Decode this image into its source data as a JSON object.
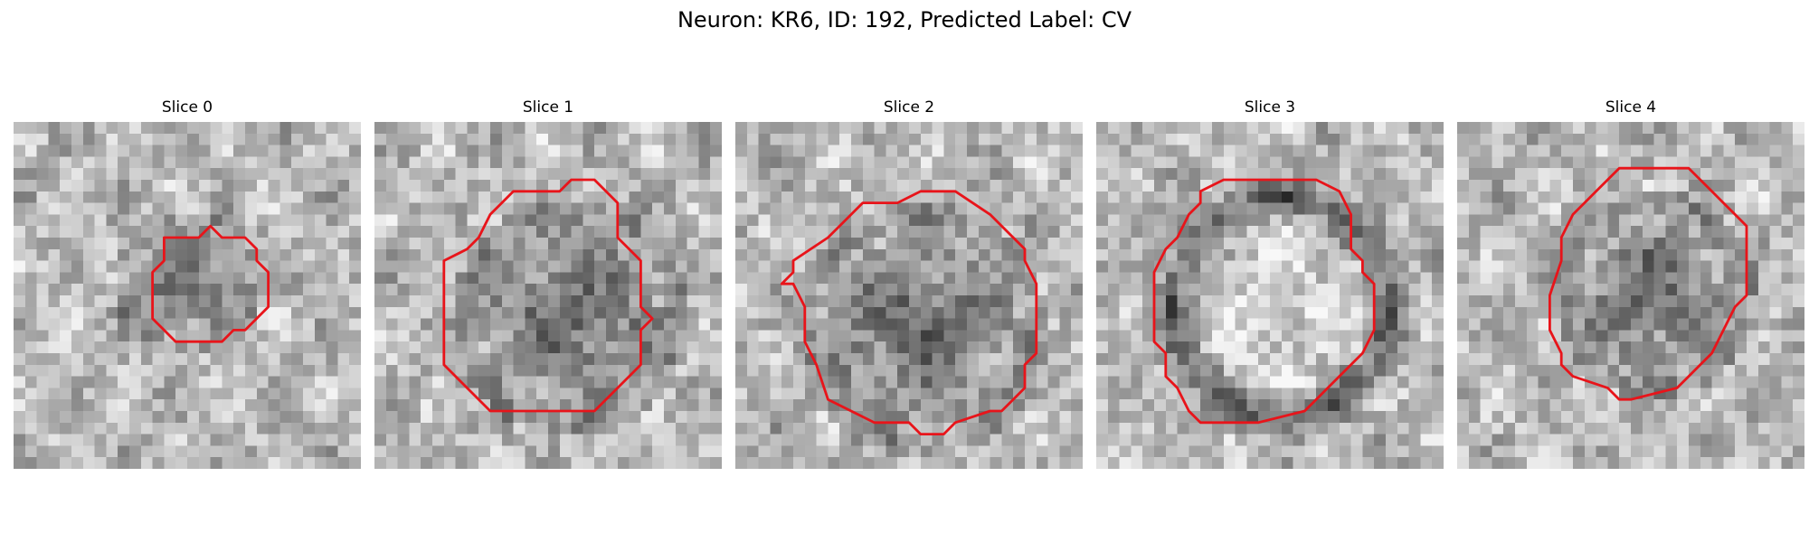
{
  "figure": {
    "title": "Neuron: KR6, ID: 192, Predicted Label: CV",
    "contour_color": "#e8141a"
  },
  "panels": [
    {
      "title": "Slice 0",
      "seed": 11,
      "dark_center": [
        15,
        14
      ],
      "dark_radius": 4.5,
      "ring": false
    },
    {
      "title": "Slice 1",
      "seed": 23,
      "dark_center": [
        17,
        17
      ],
      "dark_radius": 8.5,
      "ring": false
    },
    {
      "title": "Slice 2",
      "seed": 37,
      "dark_center": [
        16,
        18
      ],
      "dark_radius": 9.0,
      "ring": false
    },
    {
      "title": "Slice 3",
      "seed": 41,
      "dark_center": [
        16,
        16
      ],
      "dark_radius": 9.5,
      "ring": true
    },
    {
      "title": "Slice 4",
      "seed": 53,
      "dark_center": [
        17,
        15
      ],
      "dark_radius": 7.0,
      "ring": false
    }
  ]
}
